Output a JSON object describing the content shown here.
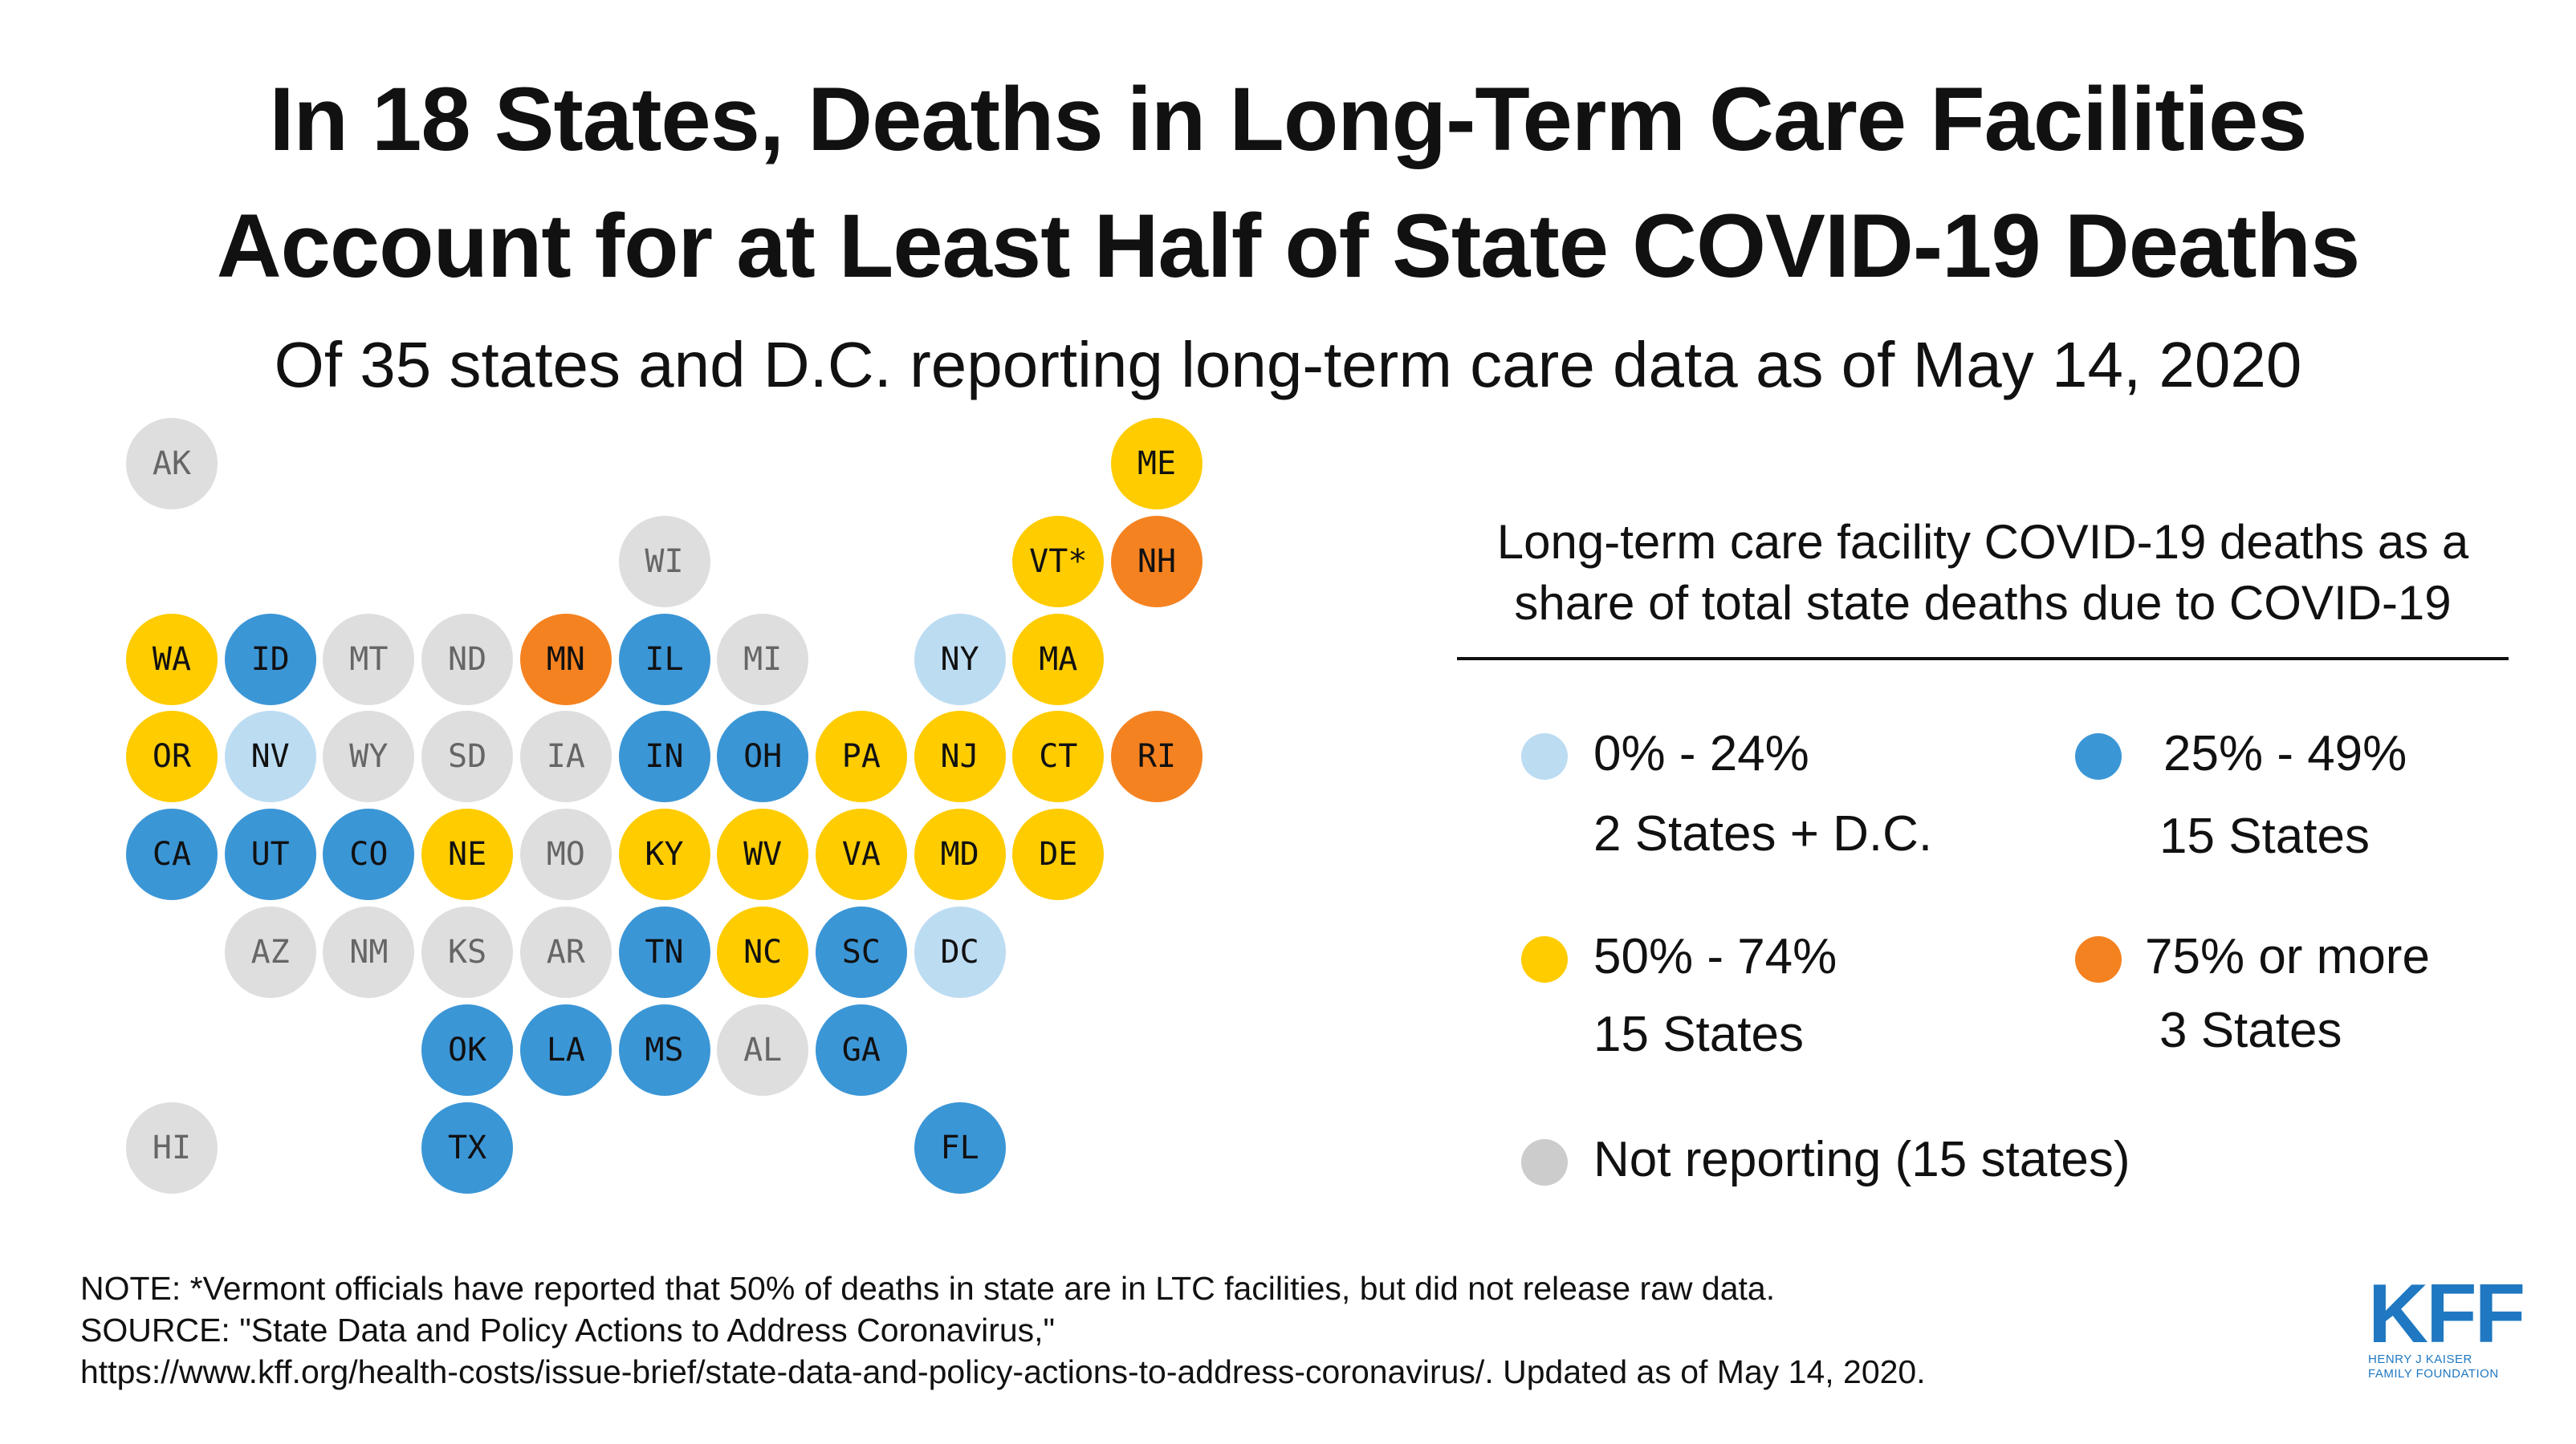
{
  "title": {
    "line1": "In 18 States, Deaths in Long-Term Care Facilities",
    "line2": "Account for at Least Half of State COVID-19 Deaths"
  },
  "subtitle": "Of 35 states and D.C. reporting long-term care data as of May 14, 2020",
  "colors": {
    "light_blue": "#bcdcf2",
    "blue": "#3b96d6",
    "yellow": "#ffcc00",
    "orange": "#f58220",
    "grey": "#dedede",
    "legend_grey": "#cccccc",
    "kff_blue": "#1f78c1"
  },
  "legend": {
    "title_line1": "Long-term care facility COVID-19 deaths as a",
    "title_line2": "share of total state deaths due to COVID-19",
    "items": [
      {
        "range": "0% - 24%",
        "count": "2 States + D.C.",
        "category": "light_blue"
      },
      {
        "range": "25% - 49%",
        "count": "15 States",
        "category": "blue"
      },
      {
        "range": "50% - 74%",
        "count": "15 States",
        "category": "yellow"
      },
      {
        "range": "75% or more",
        "count": "3 States",
        "category": "orange"
      },
      {
        "range": "Not reporting (15 states)",
        "count": "",
        "category": "grey"
      }
    ]
  },
  "map": {
    "type": "tile-map",
    "states": [
      {
        "abbr": "AK",
        "row": 0,
        "col": 0,
        "category": "grey"
      },
      {
        "abbr": "ME",
        "row": 0,
        "col": 10,
        "category": "yellow"
      },
      {
        "abbr": "WI",
        "row": 1,
        "col": 5,
        "category": "grey"
      },
      {
        "abbr": "VT*",
        "row": 1,
        "col": 9,
        "category": "yellow"
      },
      {
        "abbr": "NH",
        "row": 1,
        "col": 10,
        "category": "orange"
      },
      {
        "abbr": "WA",
        "row": 2,
        "col": 0,
        "category": "yellow"
      },
      {
        "abbr": "ID",
        "row": 2,
        "col": 1,
        "category": "blue"
      },
      {
        "abbr": "MT",
        "row": 2,
        "col": 2,
        "category": "grey"
      },
      {
        "abbr": "ND",
        "row": 2,
        "col": 3,
        "category": "grey"
      },
      {
        "abbr": "MN",
        "row": 2,
        "col": 4,
        "category": "orange"
      },
      {
        "abbr": "IL",
        "row": 2,
        "col": 5,
        "category": "blue"
      },
      {
        "abbr": "MI",
        "row": 2,
        "col": 6,
        "category": "grey"
      },
      {
        "abbr": "NY",
        "row": 2,
        "col": 8,
        "category": "light_blue"
      },
      {
        "abbr": "MA",
        "row": 2,
        "col": 9,
        "category": "yellow"
      },
      {
        "abbr": "OR",
        "row": 3,
        "col": 0,
        "category": "yellow"
      },
      {
        "abbr": "NV",
        "row": 3,
        "col": 1,
        "category": "light_blue"
      },
      {
        "abbr": "WY",
        "row": 3,
        "col": 2,
        "category": "grey"
      },
      {
        "abbr": "SD",
        "row": 3,
        "col": 3,
        "category": "grey"
      },
      {
        "abbr": "IA",
        "row": 3,
        "col": 4,
        "category": "grey"
      },
      {
        "abbr": "IN",
        "row": 3,
        "col": 5,
        "category": "blue"
      },
      {
        "abbr": "OH",
        "row": 3,
        "col": 6,
        "category": "blue"
      },
      {
        "abbr": "PA",
        "row": 3,
        "col": 7,
        "category": "yellow"
      },
      {
        "abbr": "NJ",
        "row": 3,
        "col": 8,
        "category": "yellow"
      },
      {
        "abbr": "CT",
        "row": 3,
        "col": 9,
        "category": "yellow"
      },
      {
        "abbr": "RI",
        "row": 3,
        "col": 10,
        "category": "orange"
      },
      {
        "abbr": "CA",
        "row": 4,
        "col": 0,
        "category": "blue"
      },
      {
        "abbr": "UT",
        "row": 4,
        "col": 1,
        "category": "blue"
      },
      {
        "abbr": "CO",
        "row": 4,
        "col": 2,
        "category": "blue"
      },
      {
        "abbr": "NE",
        "row": 4,
        "col": 3,
        "category": "yellow"
      },
      {
        "abbr": "MO",
        "row": 4,
        "col": 4,
        "category": "grey"
      },
      {
        "abbr": "KY",
        "row": 4,
        "col": 5,
        "category": "yellow"
      },
      {
        "abbr": "WV",
        "row": 4,
        "col": 6,
        "category": "yellow"
      },
      {
        "abbr": "VA",
        "row": 4,
        "col": 7,
        "category": "yellow"
      },
      {
        "abbr": "MD",
        "row": 4,
        "col": 8,
        "category": "yellow"
      },
      {
        "abbr": "DE",
        "row": 4,
        "col": 9,
        "category": "yellow"
      },
      {
        "abbr": "AZ",
        "row": 5,
        "col": 1,
        "category": "grey"
      },
      {
        "abbr": "NM",
        "row": 5,
        "col": 2,
        "category": "grey"
      },
      {
        "abbr": "KS",
        "row": 5,
        "col": 3,
        "category": "grey"
      },
      {
        "abbr": "AR",
        "row": 5,
        "col": 4,
        "category": "grey"
      },
      {
        "abbr": "TN",
        "row": 5,
        "col": 5,
        "category": "blue"
      },
      {
        "abbr": "NC",
        "row": 5,
        "col": 6,
        "category": "yellow"
      },
      {
        "abbr": "SC",
        "row": 5,
        "col": 7,
        "category": "blue"
      },
      {
        "abbr": "DC",
        "row": 5,
        "col": 8,
        "category": "light_blue"
      },
      {
        "abbr": "OK",
        "row": 6,
        "col": 3,
        "category": "blue"
      },
      {
        "abbr": "LA",
        "row": 6,
        "col": 4,
        "category": "blue"
      },
      {
        "abbr": "MS",
        "row": 6,
        "col": 5,
        "category": "blue"
      },
      {
        "abbr": "AL",
        "row": 6,
        "col": 6,
        "category": "grey"
      },
      {
        "abbr": "GA",
        "row": 6,
        "col": 7,
        "category": "blue"
      },
      {
        "abbr": "HI",
        "row": 7,
        "col": 0,
        "category": "grey"
      },
      {
        "abbr": "TX",
        "row": 7,
        "col": 3,
        "category": "blue"
      },
      {
        "abbr": "FL",
        "row": 7,
        "col": 8,
        "category": "blue"
      }
    ]
  },
  "notes": {
    "note": "NOTE: *Vermont officials have reported that 50% of deaths in state are in LTC facilities, but did not release raw data.",
    "source_line1": "SOURCE: \"State Data and Policy Actions to Address Coronavirus,\"",
    "source_line2": "https://www.kff.org/health-costs/issue-brief/state-data-and-policy-actions-to-address-coronavirus/. Updated as of May 14, 2020."
  },
  "logo": {
    "mark": "KFF",
    "line1": "HENRY J KAISER",
    "line2": "FAMILY FOUNDATION"
  }
}
